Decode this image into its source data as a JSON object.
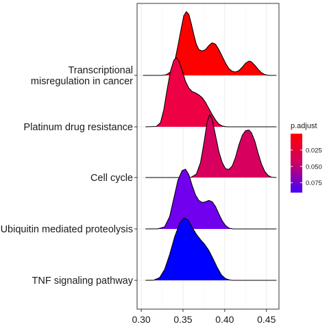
{
  "chart_data": {
    "type": "ridgeline",
    "title": "",
    "xlabel": "",
    "ylabel": "",
    "xlim": [
      0.295,
      0.465
    ],
    "x_ticks": [
      0.3,
      0.35,
      0.4,
      0.45
    ],
    "x_tick_labels": [
      "0.30",
      "0.35",
      "0.40",
      "0.45"
    ],
    "grid": true,
    "legend": {
      "title": "p.adjust",
      "position": "right",
      "ticks": [
        0.025,
        0.05,
        0.075
      ],
      "tick_labels": [
        "0.025",
        "0.050",
        "0.075"
      ],
      "range": [
        0.0,
        0.09
      ],
      "low_color": "#FF0000",
      "high_color": "#0000FF"
    },
    "series": [
      {
        "name": "TNF signaling pathway",
        "p_adjust": 0.09,
        "fill": "#0000FF",
        "x_range": [
          0.305,
          0.462
        ],
        "curve": [
          [
            0.305,
            0
          ],
          [
            0.315,
            0.002
          ],
          [
            0.322,
            0.04
          ],
          [
            0.328,
            0.16
          ],
          [
            0.334,
            0.38
          ],
          [
            0.34,
            0.64
          ],
          [
            0.346,
            0.84
          ],
          [
            0.351,
            0.92
          ],
          [
            0.356,
            0.89
          ],
          [
            0.361,
            0.78
          ],
          [
            0.366,
            0.68
          ],
          [
            0.371,
            0.6
          ],
          [
            0.376,
            0.53
          ],
          [
            0.381,
            0.44
          ],
          [
            0.386,
            0.32
          ],
          [
            0.391,
            0.19
          ],
          [
            0.396,
            0.08
          ],
          [
            0.401,
            0.025
          ],
          [
            0.406,
            0.005
          ],
          [
            0.41,
            0
          ],
          [
            0.462,
            0
          ]
        ]
      },
      {
        "name": "Ubiquitin mediated proteolysis",
        "p_adjust": 0.08,
        "fill": "#7000EE",
        "x_range": [
          0.305,
          0.462
        ],
        "curve": [
          [
            0.305,
            0
          ],
          [
            0.32,
            0.002
          ],
          [
            0.328,
            0.03
          ],
          [
            0.334,
            0.18
          ],
          [
            0.339,
            0.45
          ],
          [
            0.344,
            0.72
          ],
          [
            0.349,
            0.86
          ],
          [
            0.353,
            0.88
          ],
          [
            0.357,
            0.8
          ],
          [
            0.361,
            0.64
          ],
          [
            0.365,
            0.5
          ],
          [
            0.369,
            0.42
          ],
          [
            0.373,
            0.39
          ],
          [
            0.377,
            0.4
          ],
          [
            0.381,
            0.42
          ],
          [
            0.385,
            0.4
          ],
          [
            0.389,
            0.33
          ],
          [
            0.393,
            0.22
          ],
          [
            0.397,
            0.12
          ],
          [
            0.401,
            0.05
          ],
          [
            0.405,
            0.012
          ],
          [
            0.41,
            0
          ],
          [
            0.462,
            0
          ]
        ]
      },
      {
        "name": "Cell cycle",
        "p_adjust": 0.045,
        "fill": "#D8005F",
        "x_range": [
          0.305,
          0.462
        ],
        "curve": [
          [
            0.305,
            0
          ],
          [
            0.35,
            0
          ],
          [
            0.36,
            0.005
          ],
          [
            0.366,
            0.05
          ],
          [
            0.371,
            0.22
          ],
          [
            0.375,
            0.5
          ],
          [
            0.379,
            0.82
          ],
          [
            0.382,
            0.93
          ],
          [
            0.385,
            0.86
          ],
          [
            0.389,
            0.62
          ],
          [
            0.393,
            0.38
          ],
          [
            0.397,
            0.22
          ],
          [
            0.401,
            0.13
          ],
          [
            0.405,
            0.12
          ],
          [
            0.409,
            0.17
          ],
          [
            0.413,
            0.3
          ],
          [
            0.417,
            0.48
          ],
          [
            0.421,
            0.62
          ],
          [
            0.425,
            0.69
          ],
          [
            0.429,
            0.7
          ],
          [
            0.432,
            0.66
          ],
          [
            0.436,
            0.54
          ],
          [
            0.44,
            0.36
          ],
          [
            0.444,
            0.2
          ],
          [
            0.448,
            0.09
          ],
          [
            0.452,
            0.03
          ],
          [
            0.456,
            0.005
          ],
          [
            0.462,
            0
          ]
        ]
      },
      {
        "name": "Platinum drug resistance",
        "p_adjust": 0.03,
        "fill": "#EE0045",
        "x_range": [
          0.305,
          0.462
        ],
        "curve": [
          [
            0.305,
            0
          ],
          [
            0.318,
            0.005
          ],
          [
            0.323,
            0.06
          ],
          [
            0.327,
            0.25
          ],
          [
            0.331,
            0.55
          ],
          [
            0.335,
            0.82
          ],
          [
            0.339,
            0.98
          ],
          [
            0.342,
            1.02
          ],
          [
            0.345,
            0.97
          ],
          [
            0.349,
            0.83
          ],
          [
            0.353,
            0.67
          ],
          [
            0.357,
            0.57
          ],
          [
            0.361,
            0.52
          ],
          [
            0.365,
            0.5
          ],
          [
            0.369,
            0.47
          ],
          [
            0.373,
            0.43
          ],
          [
            0.377,
            0.36
          ],
          [
            0.381,
            0.27
          ],
          [
            0.385,
            0.18
          ],
          [
            0.389,
            0.1
          ],
          [
            0.393,
            0.04
          ],
          [
            0.397,
            0.012
          ],
          [
            0.401,
            0.002
          ],
          [
            0.405,
            0
          ],
          [
            0.462,
            0
          ]
        ]
      },
      {
        "name": "Transcriptional\nmisregulation in cancer",
        "p_adjust": 0.01,
        "fill": "#FF0000",
        "x_range": [
          0.302,
          0.462
        ],
        "curve": [
          [
            0.302,
            0
          ],
          [
            0.325,
            0
          ],
          [
            0.33,
            0.01
          ],
          [
            0.335,
            0.05
          ],
          [
            0.34,
            0.2
          ],
          [
            0.344,
            0.44
          ],
          [
            0.348,
            0.7
          ],
          [
            0.351,
            0.88
          ],
          [
            0.354,
            0.94
          ],
          [
            0.357,
            0.9
          ],
          [
            0.36,
            0.76
          ],
          [
            0.363,
            0.6
          ],
          [
            0.366,
            0.46
          ],
          [
            0.369,
            0.38
          ],
          [
            0.373,
            0.36
          ],
          [
            0.377,
            0.38
          ],
          [
            0.381,
            0.44
          ],
          [
            0.385,
            0.48
          ],
          [
            0.389,
            0.46
          ],
          [
            0.393,
            0.38
          ],
          [
            0.397,
            0.28
          ],
          [
            0.401,
            0.18
          ],
          [
            0.405,
            0.1
          ],
          [
            0.409,
            0.06
          ],
          [
            0.413,
            0.05
          ],
          [
            0.417,
            0.07
          ],
          [
            0.421,
            0.12
          ],
          [
            0.425,
            0.18
          ],
          [
            0.429,
            0.21
          ],
          [
            0.432,
            0.2
          ],
          [
            0.436,
            0.15
          ],
          [
            0.44,
            0.09
          ],
          [
            0.444,
            0.04
          ],
          [
            0.448,
            0.012
          ],
          [
            0.452,
            0.002
          ],
          [
            0.456,
            0
          ],
          [
            0.462,
            0
          ]
        ]
      }
    ]
  }
}
